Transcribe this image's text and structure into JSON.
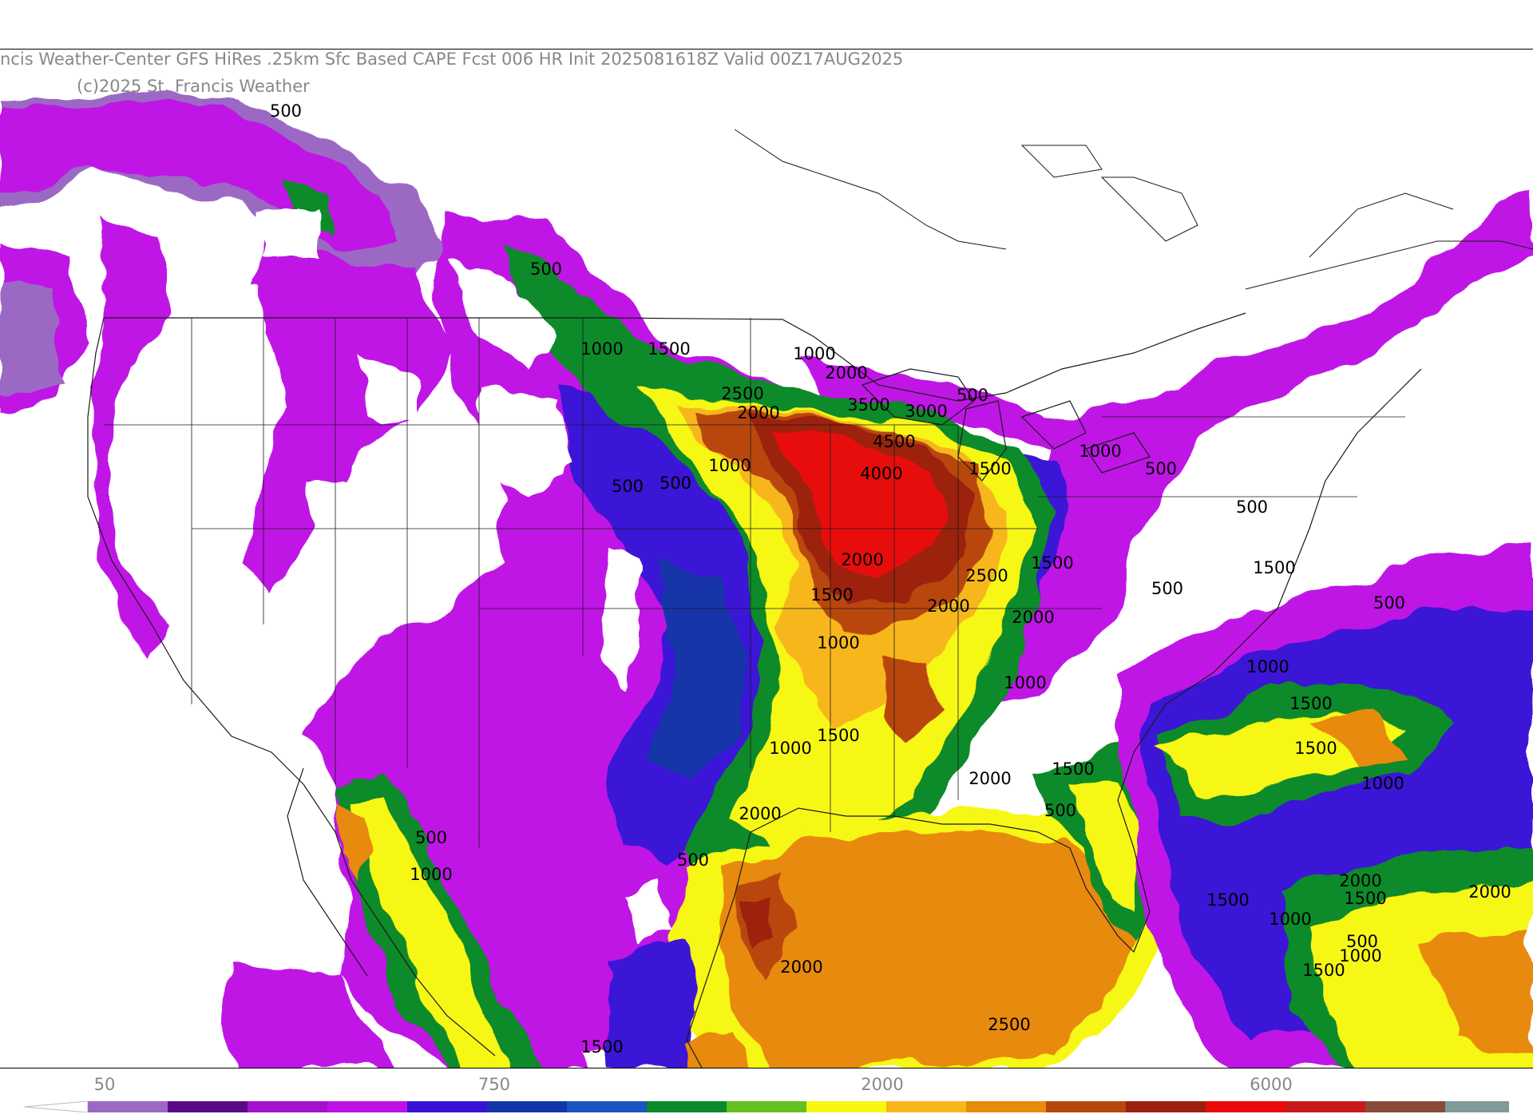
{
  "header": {
    "title": "ncis Weather-Center GFS HiRes .25km Sfc Based CAPE  Fcst 006 HR Init 2025081618Z  Valid 00Z17AUG2025",
    "copyright": "(c)2025 St. Francis Weather"
  },
  "colors": {
    "c50": "#9b69c4",
    "c100": "#5a0a88",
    "c250": "#a412cf",
    "c500": "#bf12e6",
    "c750": "#3a12d6",
    "c1000": "#1236a8",
    "c1250": "#1a55c2",
    "c1500": "#0a8a2a",
    "c1750": "#64c020",
    "c2000": "#f7f713",
    "c2500": "#f7b71a",
    "c3000": "#e88a0a",
    "c3500": "#b9460a",
    "c4000": "#9c2010",
    "c4500": "#e80a0a",
    "c5000": "#c81a1a",
    "c5500": "#8a4a3a",
    "c6000": "#7f9a98",
    "c6500": "#a8dcec"
  },
  "colorbar": {
    "ticks": [
      "50",
      "750",
      "2000",
      "6000"
    ]
  },
  "contour_labels": [
    "500",
    "500",
    "1000",
    "1500",
    "1000",
    "2000",
    "2500",
    "2000",
    "3500",
    "3000",
    "500",
    "4500",
    "1000",
    "4000",
    "1500",
    "500",
    "1000",
    "500",
    "500",
    "500",
    "2000",
    "1500",
    "2500",
    "1500",
    "2000",
    "500",
    "2000",
    "500",
    "1500",
    "1000",
    "1000",
    "1500",
    "1000",
    "1500",
    "1500",
    "1000",
    "1500",
    "2000",
    "500",
    "1000",
    "2000",
    "500",
    "1000",
    "500",
    "2000",
    "1500",
    "1000",
    "500",
    "1500",
    "2000",
    "1000",
    "1500",
    "2500",
    "2000",
    "1500"
  ]
}
